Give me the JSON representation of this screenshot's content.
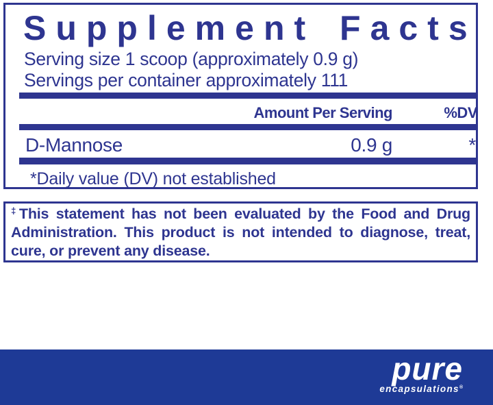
{
  "label": {
    "title": "Supplement Facts",
    "serving_size_line": "Serving size  1 scoop (approximately 0.9 g)",
    "servings_per_container_line": "Servings per container  approximately 111",
    "header": {
      "amount_per_serving": "Amount Per Serving",
      "dv": "%DV"
    },
    "rows": [
      {
        "name": "D-Mannose",
        "amount": "0.9 g",
        "dv": "*"
      }
    ],
    "footnote": "*Daily value (DV) not established"
  },
  "disclaimer": {
    "dagger": "‡",
    "text": "This statement has not been evaluated by the Food and Drug Administration. This product is not intended to diagnose, treat, cure, or prevent any disease."
  },
  "footer": {
    "brand_name": "pure",
    "brand_subtitle": "encapsulations",
    "registered_mark": "®"
  },
  "colors": {
    "navy": "#2e3590",
    "band_blue": "#1e3a96",
    "text_white": "#ffffff"
  }
}
